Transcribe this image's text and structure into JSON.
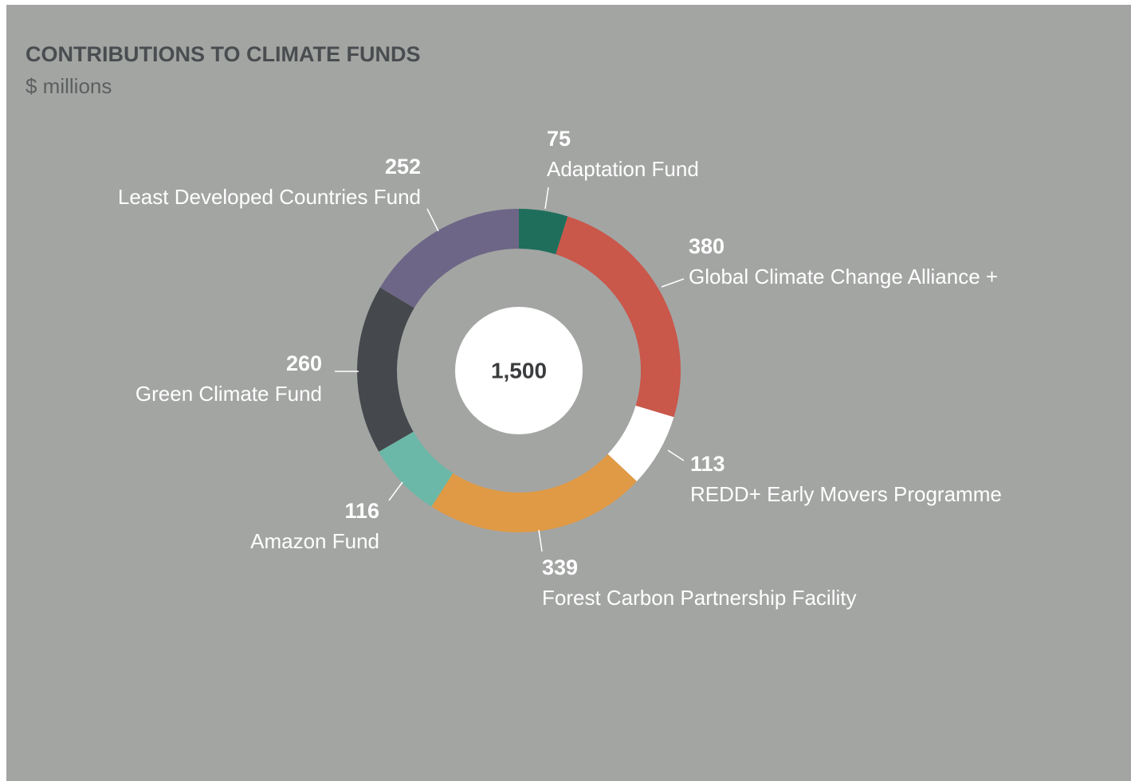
{
  "chart_data": {
    "type": "donut",
    "title": "CONTRIBUTIONS TO CLIMATE FUNDS",
    "subtitle": "$ millions",
    "center_label": "1,500",
    "categories": [
      "Adaptation Fund",
      "Global Climate Change Alliance +",
      "REDD+ Early Movers Programme",
      "Forest Carbon Partnership Facility",
      "Amazon Fund",
      "Green Climate Fund",
      "Least Developed Countries Fund"
    ],
    "values": [
      75,
      380,
      113,
      339,
      116,
      260,
      252
    ],
    "colors": [
      "#1f6e5c",
      "#c9574a",
      "#ffffff",
      "#e09a45",
      "#6bb8a8",
      "#45484c",
      "#6e6686"
    ]
  }
}
